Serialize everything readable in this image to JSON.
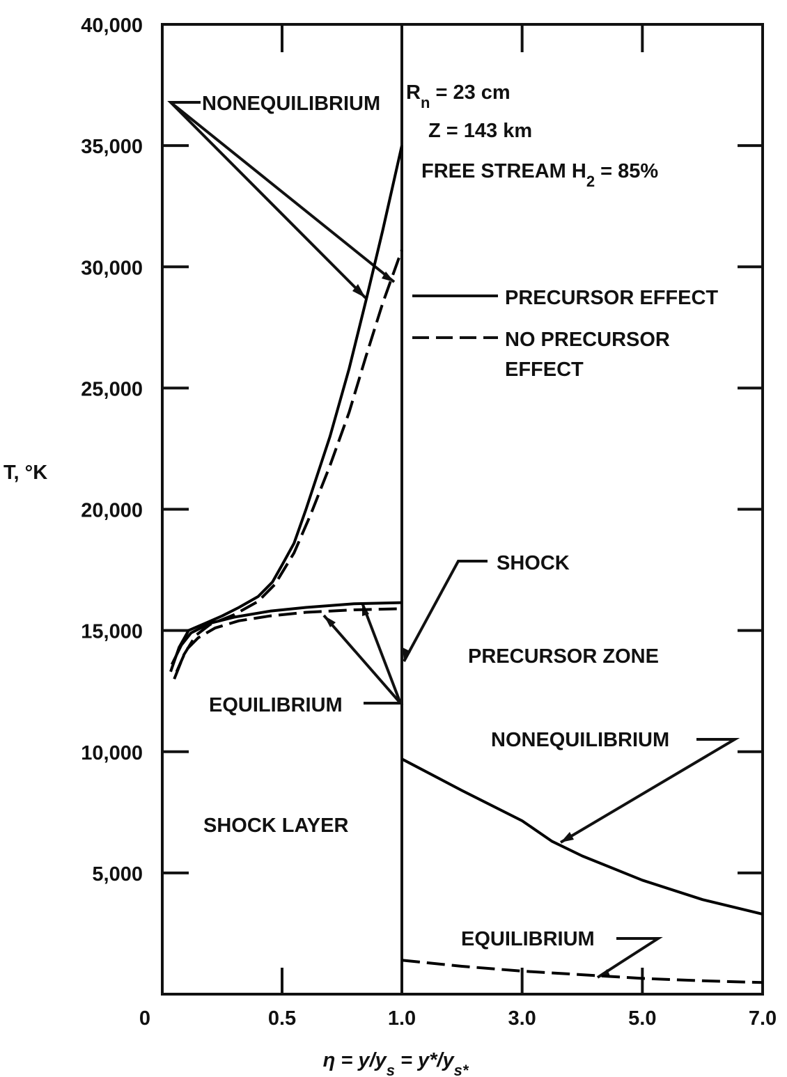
{
  "chart_data": [
    {
      "type": "line",
      "y_label": "T, °K",
      "x_label": [
        "η = y/y",
        "s",
        " = y*/y",
        "s*"
      ],
      "xlim": [
        0,
        1
      ],
      "xticks": [
        0,
        0.5,
        {
          "value": 1,
          "label": "1.0"
        }
      ],
      "ylim": [
        0,
        40000
      ],
      "yticks": [
        {
          "value": 5000,
          "label": "5,000"
        },
        {
          "value": 10000,
          "label": "10,000"
        },
        {
          "value": 15000,
          "label": "15,000"
        },
        {
          "value": 20000,
          "label": "20,000"
        },
        {
          "value": 25000,
          "label": "25,000"
        },
        {
          "value": 30000,
          "label": "30,000"
        },
        {
          "value": 35000,
          "label": "35,000"
        },
        {
          "value": 40000,
          "label": "40,000"
        }
      ],
      "series": [
        {
          "style": "solid",
          "color": "#000000",
          "x": [
            0.035,
            0.07,
            0.11,
            0.18,
            0.25,
            0.32,
            0.4,
            0.46,
            0.5,
            0.55,
            0.6,
            0.7,
            0.78,
            0.85,
            0.92,
            1.0
          ],
          "values": [
            13300,
            14300,
            15000,
            15300,
            15600,
            15950,
            16400,
            17000,
            17700,
            18600,
            20000,
            23000,
            25800,
            28600,
            31500,
            35000
          ]
        },
        {
          "style": "dashed",
          "color": "#000000",
          "x": [
            0.05,
            0.09,
            0.14,
            0.2,
            0.3,
            0.4,
            0.47,
            0.55,
            0.62,
            0.7,
            0.78,
            0.85,
            0.92,
            1.0
          ],
          "values": [
            13000,
            14000,
            14800,
            15250,
            15650,
            16200,
            16900,
            18200,
            19800,
            21800,
            24000,
            26300,
            28500,
            30700
          ]
        },
        {
          "style": "solid",
          "color": "#000000",
          "x": [
            0.04,
            0.08,
            0.12,
            0.2,
            0.3,
            0.45,
            0.6,
            0.8,
            1.0
          ],
          "values": [
            13600,
            14400,
            14900,
            15300,
            15550,
            15800,
            15950,
            16100,
            16150
          ]
        },
        {
          "style": "dashed",
          "color": "#000000",
          "x": [
            0.06,
            0.1,
            0.15,
            0.22,
            0.32,
            0.45,
            0.6,
            0.8,
            1.0
          ],
          "values": [
            13300,
            14200,
            14700,
            15100,
            15400,
            15600,
            15750,
            15850,
            15900
          ]
        }
      ],
      "legend": [
        {
          "text": [
            "PRECURSOR EFFECT"
          ],
          "style": "solid"
        },
        {
          "text": [
            "NO PRECURSOR",
            "EFFECT"
          ],
          "style": "dashed"
        }
      ],
      "annotations": [
        {
          "text": [
            "NONEQUILIBRIUM"
          ]
        },
        {
          "text": [
            "R",
            "n",
            " = 23 cm"
          ]
        },
        {
          "text": [
            "Z = 143 km"
          ]
        },
        {
          "text": [
            "FREE STREAM H",
            "2",
            " = 85%"
          ]
        },
        {
          "text": [
            "SHOCK"
          ]
        },
        {
          "text": [
            "PRECURSOR ZONE"
          ]
        },
        {
          "text": [
            "EQUILIBRIUM"
          ]
        },
        {
          "text": [
            "NONEQUILIBRIUM"
          ]
        },
        {
          "text": [
            "SHOCK LAYER"
          ]
        },
        {
          "text": [
            "EQUILIBRIUM"
          ]
        }
      ]
    },
    {
      "type": "line",
      "xlim": [
        1,
        7
      ],
      "xticks": [
        {
          "value": 3,
          "label": "3.0"
        },
        {
          "value": 5,
          "label": "5.0"
        },
        {
          "value": 7,
          "label": "7.0"
        }
      ],
      "ylim": [
        0,
        40000
      ],
      "series": [
        {
          "style": "solid",
          "color": "#000000",
          "x": [
            1,
            2,
            3,
            3.5,
            4,
            5,
            6,
            7
          ],
          "values": [
            9700,
            8400,
            7150,
            6300,
            5700,
            4700,
            3900,
            3300
          ]
        },
        {
          "style": "dashed",
          "color": "#000000",
          "x": [
            1,
            2,
            3,
            4,
            5,
            6,
            7
          ],
          "values": [
            1400,
            1150,
            950,
            800,
            650,
            550,
            480
          ]
        }
      ]
    }
  ]
}
